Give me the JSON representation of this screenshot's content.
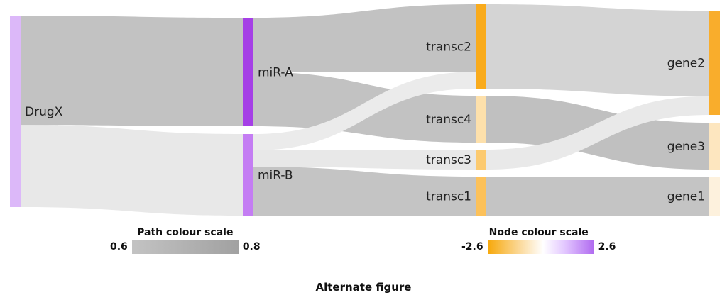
{
  "diagram": {
    "nodes": [
      {
        "id": "DrugX",
        "label": "DrugX",
        "column": 0,
        "color": "#dcb8f9"
      },
      {
        "id": "miR-A",
        "label": "miR-A",
        "column": 1,
        "color": "#a53fe6"
      },
      {
        "id": "miR-B",
        "label": "miR-B",
        "column": 1,
        "color": "#c47df3"
      },
      {
        "id": "transc2",
        "label": "transc2",
        "column": 2,
        "color": "#f9ab1c"
      },
      {
        "id": "transc4",
        "label": "transc4",
        "column": 2,
        "color": "#fde0ab"
      },
      {
        "id": "transc3",
        "label": "transc3",
        "column": 2,
        "color": "#fcca70"
      },
      {
        "id": "transc1",
        "label": "transc1",
        "column": 2,
        "color": "#fcc15a"
      },
      {
        "id": "gene2",
        "label": "gene2",
        "column": 3,
        "color": "#f9ad2c"
      },
      {
        "id": "gene3",
        "label": "gene3",
        "column": 3,
        "color": "#fde6bf"
      },
      {
        "id": "gene1",
        "label": "gene1",
        "column": 3,
        "color": "#fdf1dd"
      }
    ],
    "links": [
      {
        "source": "DrugX",
        "target": "miR-A",
        "value": 4,
        "color": "#c2c2c2"
      },
      {
        "source": "DrugX",
        "target": "miR-B",
        "value": 3,
        "color": "#e8e8e8"
      },
      {
        "source": "miR-A",
        "target": "transc2",
        "value": 2,
        "color": "#c2c2c2"
      },
      {
        "source": "miR-A",
        "target": "transc4",
        "value": 2,
        "color": "#c2c2c2"
      },
      {
        "source": "miR-B",
        "target": "transc2",
        "value": 0.5,
        "color": "#ebebeb"
      },
      {
        "source": "miR-B",
        "target": "transc3",
        "value": 0.5,
        "color": "#e8e8e8"
      },
      {
        "source": "miR-B",
        "target": "transc1",
        "value": 1.5,
        "color": "#c4c4c4"
      },
      {
        "source": "transc2",
        "target": "gene2",
        "value": 3.2,
        "color": "#d4d4d4"
      },
      {
        "source": "transc4",
        "target": "gene3",
        "value": 2.6,
        "color": "#c0c0c0"
      },
      {
        "source": "transc3",
        "target": "gene2",
        "value": 0.7,
        "color": "#e9e9e9"
      },
      {
        "source": "transc1",
        "target": "gene1",
        "value": 1.5,
        "color": "#c4c4c4"
      }
    ]
  },
  "path_legend": {
    "title": "Path colour scale",
    "min": "0.6",
    "max": "0.8",
    "colors": [
      "#c3c3c3",
      "#a1a1a1"
    ]
  },
  "node_legend": {
    "title": "Node colour scale",
    "min": "-2.6",
    "max": "2.6",
    "colors": [
      "#f7a80a",
      "#ffffff",
      "#b06af0"
    ]
  },
  "caption": "Alternate figure"
}
